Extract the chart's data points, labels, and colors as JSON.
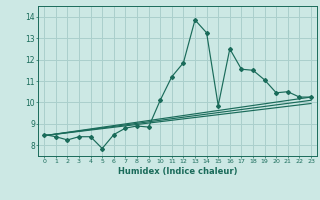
{
  "xlabel": "Humidex (Indice chaleur)",
  "xlim": [
    -0.5,
    23.5
  ],
  "ylim": [
    7.5,
    14.5
  ],
  "xticks": [
    0,
    1,
    2,
    3,
    4,
    5,
    6,
    7,
    8,
    9,
    10,
    11,
    12,
    13,
    14,
    15,
    16,
    17,
    18,
    19,
    20,
    21,
    22,
    23
  ],
  "yticks": [
    8,
    9,
    10,
    11,
    12,
    13,
    14
  ],
  "background_color": "#cce8e4",
  "grid_color": "#aacfcc",
  "line_color": "#1a6b5a",
  "lines": [
    {
      "x": [
        0,
        1,
        2,
        3,
        4,
        5,
        6,
        7,
        8,
        9,
        10,
        11,
        12,
        13,
        14,
        15,
        16,
        17,
        18,
        19,
        20,
        21,
        22,
        23
      ],
      "y": [
        8.5,
        8.4,
        8.25,
        8.4,
        8.4,
        7.85,
        8.5,
        8.8,
        8.9,
        8.85,
        10.1,
        11.2,
        11.85,
        13.85,
        13.25,
        9.85,
        12.5,
        11.55,
        11.5,
        11.05,
        10.45,
        10.5,
        10.25,
        10.25
      ],
      "marker": "D",
      "markersize": 2.0
    },
    {
      "x": [
        0,
        23
      ],
      "y": [
        8.45,
        10.25
      ],
      "marker": null
    },
    {
      "x": [
        0,
        23
      ],
      "y": [
        8.45,
        10.1
      ],
      "marker": null
    },
    {
      "x": [
        0,
        23
      ],
      "y": [
        8.45,
        9.95
      ],
      "marker": null
    }
  ]
}
